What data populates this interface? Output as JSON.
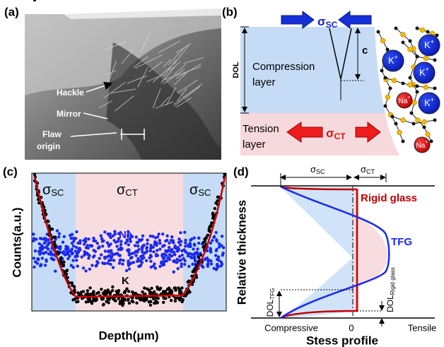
{
  "panel_a": {
    "label": "(a)",
    "annotations": [
      "Hackle",
      "Mirror",
      "Flaw",
      "origin"
    ]
  },
  "panel_b": {
    "label": "(b)",
    "sigma_sc": {
      "symbol": "σ",
      "sub": "SC"
    },
    "dol": "DOL",
    "crack_depth": "c",
    "compression": [
      "Compression",
      "layer"
    ],
    "tension": [
      "Tension",
      "layer"
    ],
    "sigma_ct": {
      "symbol": "σ",
      "sub": "CT"
    },
    "k_ion": {
      "symbol": "K",
      "sup": "+"
    },
    "na_ion": {
      "symbol": "Na",
      "sup": "+"
    }
  },
  "panel_c": {
    "label": "(c)",
    "regions": [
      {
        "symbol": "σ",
        "sub": "SC"
      },
      {
        "symbol": "σ",
        "sub": "CT"
      },
      {
        "symbol": "σ",
        "sub": "SC"
      }
    ],
    "series_labels": [
      "Na",
      "K"
    ],
    "y_label": "Counts(a.u.)",
    "x_label": "Depth(μm)"
  },
  "panel_d": {
    "label": "(d)",
    "sigma_sc": {
      "symbol": "σ",
      "sub": "SC"
    },
    "sigma_ct": {
      "symbol": "σ",
      "sub": "CT"
    },
    "rigid": "Rigid glass",
    "tfg": "TFG",
    "y_label": "Relative thickness",
    "dol_tfg": {
      "main": "DOL",
      "sub": "TFG"
    },
    "dol_rigid": {
      "main": "DOL",
      "sub": "Rigid glass"
    },
    "x_left": "Compressive",
    "x_zero": "0",
    "x_right": "Tensile",
    "x_label": "Stess profile"
  }
}
